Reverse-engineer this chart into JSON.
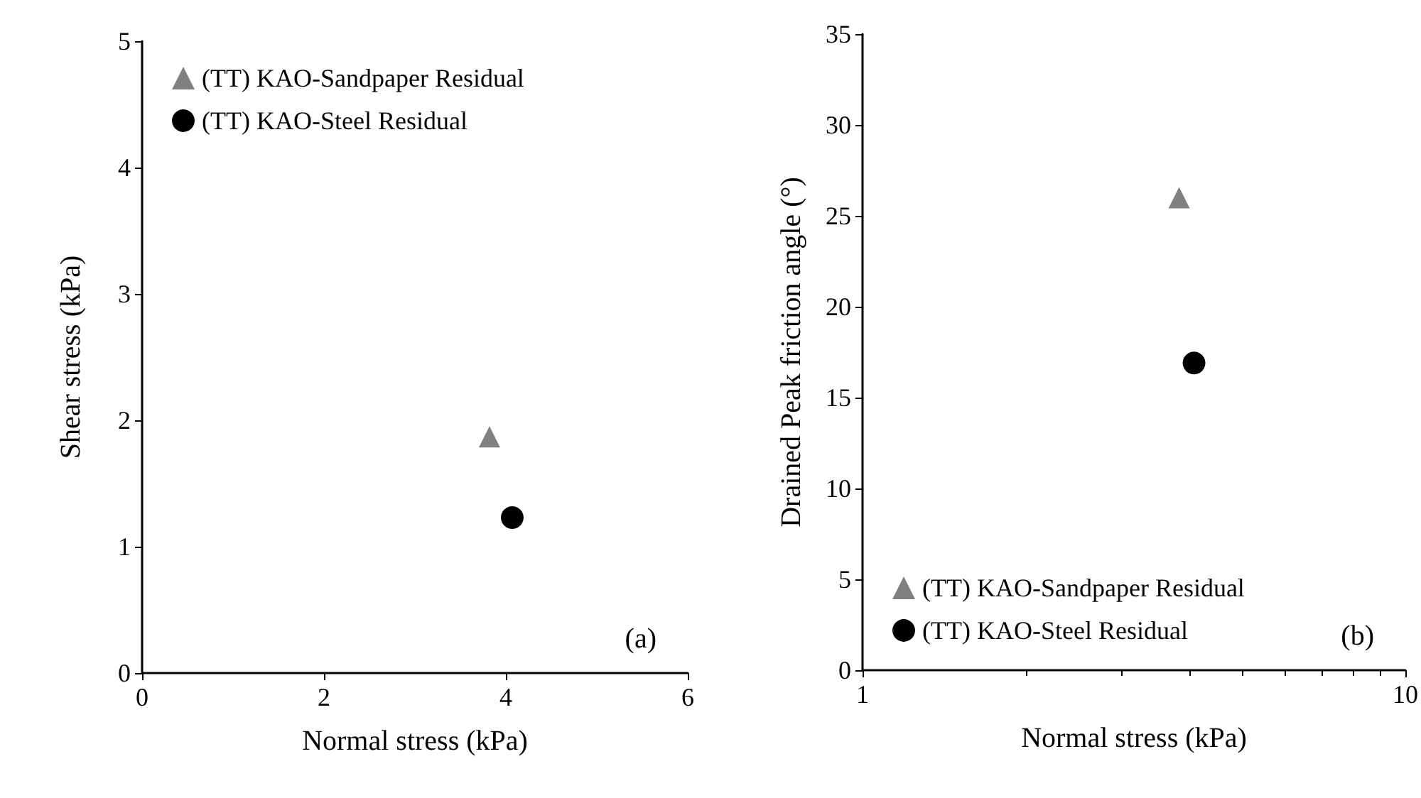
{
  "chart_data": [
    {
      "type": "scatter",
      "xlabel": "Normal stress (kPa)",
      "ylabel": "Shear stress (kPa)",
      "xlim": [
        0,
        6
      ],
      "xticks": [
        0,
        2,
        4,
        6
      ],
      "ylim": [
        0,
        5
      ],
      "yticks": [
        0,
        1,
        2,
        3,
        4,
        5
      ],
      "grid": false,
      "legend": "top left",
      "annotations": [
        "(a)"
      ],
      "series": [
        {
          "name": "(TT) KAO-Sandpaper Residual",
          "color": "#808080",
          "marker": "triangle",
          "x": [
            3.82
          ],
          "values": [
            1.87
          ]
        },
        {
          "name": "(TT) KAO-Steel Residual",
          "color": "#000000",
          "marker": "circle",
          "x": [
            4.07
          ],
          "values": [
            1.23
          ]
        }
      ]
    },
    {
      "type": "scatter",
      "xlabel": "Normal stress (kPa)",
      "ylabel": "Drained Peak friction angle (°)",
      "log": "x",
      "xlim": [
        1,
        10
      ],
      "xticks": [
        1,
        10
      ],
      "ylim": [
        0,
        35
      ],
      "yticks": [
        0,
        5,
        10,
        15,
        20,
        25,
        30,
        35
      ],
      "grid": false,
      "legend": "bottom left",
      "annotations": [
        "(b)"
      ],
      "series": [
        {
          "name": "(TT) KAO-Sandpaper Residual",
          "color": "#808080",
          "marker": "triangle",
          "x": [
            3.83
          ],
          "values": [
            26
          ]
        },
        {
          "name": "(TT) KAO-Steel Residual",
          "color": "#000000",
          "marker": "circle",
          "x": [
            4.08
          ],
          "values": [
            16.9
          ]
        }
      ]
    }
  ]
}
